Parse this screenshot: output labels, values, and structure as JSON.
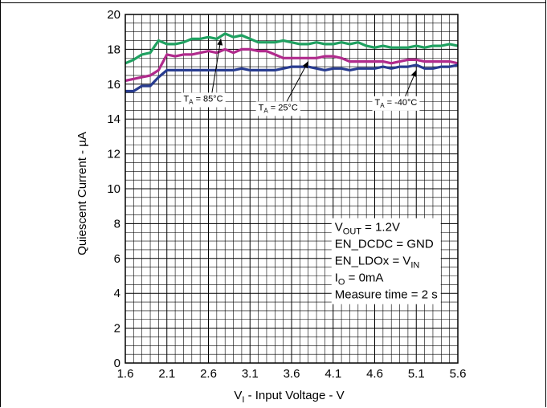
{
  "chart_data": {
    "type": "line",
    "title": "",
    "xlabel": {
      "main": "V",
      "sub": "I",
      "rest": " - Input Voltage - V"
    },
    "ylabel": "Quiescent Current - µA",
    "xlim": [
      1.6,
      5.6
    ],
    "ylim": [
      0,
      20
    ],
    "x_ticks": [
      "1.6",
      "2.1",
      "2.6",
      "3.1",
      "3.6",
      "4.1",
      "4.6",
      "5.1",
      "5.6"
    ],
    "y_ticks": [
      "0",
      "2",
      "4",
      "6",
      "8",
      "10",
      "12",
      "14",
      "16",
      "18",
      "20"
    ],
    "grid": true,
    "x": [
      1.6,
      1.7,
      1.8,
      1.9,
      2.0,
      2.1,
      2.2,
      2.3,
      2.4,
      2.5,
      2.6,
      2.7,
      2.8,
      2.9,
      3.0,
      3.1,
      3.2,
      3.3,
      3.4,
      3.5,
      3.6,
      3.7,
      3.8,
      3.9,
      4.0,
      4.1,
      4.2,
      4.3,
      4.4,
      4.5,
      4.6,
      4.7,
      4.8,
      4.9,
      5.0,
      5.1,
      5.2,
      5.3,
      5.4,
      5.5,
      5.6
    ],
    "series": [
      {
        "name": "T_A = 85°C",
        "color": "#1fa060",
        "values": [
          17.2,
          17.4,
          17.7,
          17.8,
          18.5,
          18.3,
          18.3,
          18.4,
          18.6,
          18.6,
          18.7,
          18.6,
          18.9,
          18.7,
          18.8,
          18.6,
          18.4,
          18.4,
          18.4,
          18.5,
          18.4,
          18.3,
          18.3,
          18.4,
          18.3,
          18.3,
          18.4,
          18.3,
          18.4,
          18.2,
          18.1,
          18.2,
          18.1,
          18.1,
          18.1,
          18.2,
          18.1,
          18.2,
          18.2,
          18.3,
          18.2
        ]
      },
      {
        "name": "T_A = 25°C",
        "color": "#b02a8c",
        "values": [
          16.2,
          16.3,
          16.4,
          16.5,
          16.8,
          17.7,
          17.6,
          17.7,
          17.7,
          17.8,
          17.9,
          17.8,
          18.0,
          17.8,
          18.0,
          18.0,
          17.9,
          17.9,
          17.7,
          17.5,
          17.5,
          17.5,
          17.5,
          17.5,
          17.6,
          17.6,
          17.5,
          17.3,
          17.3,
          17.3,
          17.3,
          17.3,
          17.2,
          17.3,
          17.4,
          17.4,
          17.3,
          17.3,
          17.3,
          17.3,
          17.2
        ]
      },
      {
        "name": "T_A = -40°C",
        "color": "#283c90",
        "values": [
          15.6,
          15.6,
          15.9,
          15.9,
          16.4,
          16.8,
          16.8,
          16.8,
          16.8,
          16.8,
          16.8,
          16.8,
          16.8,
          16.8,
          16.9,
          16.8,
          16.8,
          16.8,
          16.8,
          16.9,
          17.0,
          17.0,
          17.0,
          16.9,
          16.8,
          16.9,
          16.9,
          16.8,
          16.9,
          16.9,
          16.9,
          17.0,
          16.9,
          17.0,
          17.0,
          17.1,
          16.9,
          16.9,
          17.0,
          17.0,
          17.1
        ]
      }
    ],
    "annotations": [
      {
        "id": "t85",
        "pre": "T",
        "sub": "A",
        "post": " = 85°C",
        "box": {
          "x": 2.3,
          "y": 15.0
        },
        "arrow_to": {
          "x": 2.75,
          "y": 18.7
        }
      },
      {
        "id": "t25",
        "pre": "T",
        "sub": "A",
        "post": " = 25°C",
        "box": {
          "x": 3.2,
          "y": 14.5
        },
        "arrow_to": {
          "x": 3.8,
          "y": 17.4
        }
      },
      {
        "id": "tm40",
        "pre": "T",
        "sub": "A",
        "post": " = -40°C",
        "box": {
          "x": 4.6,
          "y": 14.8
        },
        "arrow_to": {
          "x": 5.1,
          "y": 16.9
        }
      }
    ],
    "conditions": [
      {
        "pre": "V",
        "sub": "OUT",
        "post": " = 1.2V"
      },
      {
        "pre": "EN_DCDC = GND",
        "sub": "",
        "post": ""
      },
      {
        "pre": "EN_LDOx = V",
        "sub": "IN",
        "post": ""
      },
      {
        "pre": "I",
        "sub": "O",
        "post": " = 0mA"
      },
      {
        "pre": "Measure time = 2 s",
        "sub": "",
        "post": ""
      }
    ]
  }
}
